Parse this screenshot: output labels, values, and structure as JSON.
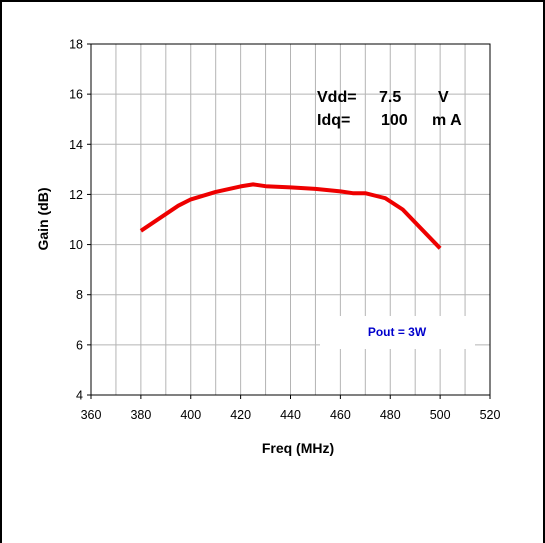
{
  "chart_data": {
    "type": "line",
    "xlabel": "Freq (MHz)",
    "ylabel": "Gain (dB)",
    "xlim": [
      360,
      520
    ],
    "ylim": [
      4,
      18
    ],
    "x_ticks": [
      360,
      380,
      400,
      420,
      440,
      460,
      480,
      500,
      520
    ],
    "y_ticks": [
      4,
      6,
      8,
      10,
      12,
      14,
      16,
      18
    ],
    "grid": true,
    "series": [
      {
        "name": "Pout = 3W",
        "color": "#ee0000",
        "x": [
          380,
          395,
          400,
          410,
          420,
          425,
          430,
          440,
          450,
          460,
          465,
          470,
          478,
          485,
          500
        ],
        "y": [
          10.55,
          11.55,
          11.8,
          12.1,
          12.32,
          12.4,
          12.33,
          12.28,
          12.22,
          12.12,
          12.05,
          12.05,
          11.85,
          11.4,
          9.85
        ]
      }
    ],
    "annotations": {
      "vdd_label": "Vdd=",
      "vdd_value": "7.5",
      "vdd_unit": "V",
      "idq_label": "Idq=",
      "idq_value": "100",
      "idq_unit": "m A"
    },
    "legend_color": "#0000cc"
  }
}
